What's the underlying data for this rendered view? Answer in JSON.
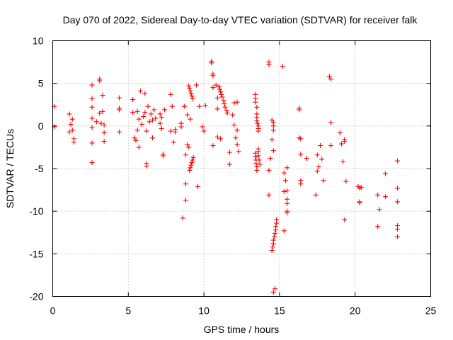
{
  "chart_data": {
    "type": "scatter",
    "title": "Day 070 of 2022, Sidereal Day-to-day VTEC variation (SDTVAR) for receiver falk",
    "xlabel": "GPS time / hours",
    "ylabel": "SDTVAR / TECUs",
    "xlim": [
      0,
      25
    ],
    "ylim": [
      -20,
      10
    ],
    "xticks": [
      0,
      5,
      10,
      15,
      20,
      25
    ],
    "yticks": [
      -20,
      -15,
      -10,
      -5,
      0,
      5,
      10
    ],
    "grid": true,
    "marker": "+",
    "color": "#ff0000",
    "series": [
      {
        "name": "SDTVAR",
        "points": [
          [
            0.1,
            2.3
          ],
          [
            0.1,
            -0.1
          ],
          [
            1.1,
            1.4
          ],
          [
            1.2,
            0.2
          ],
          [
            1.1,
            -0.7
          ],
          [
            1.3,
            -0.5
          ],
          [
            1.3,
            0.8
          ],
          [
            1.4,
            -1.5
          ],
          [
            1.4,
            -1.9
          ],
          [
            2.6,
            4.8
          ],
          [
            2.6,
            3.2
          ],
          [
            2.6,
            2.2
          ],
          [
            2.6,
            0.9
          ],
          [
            2.6,
            -0.2
          ],
          [
            2.6,
            -2.0
          ],
          [
            2.6,
            -4.3
          ],
          [
            2.9,
            0.5
          ],
          [
            3.1,
            5.3
          ],
          [
            3.1,
            5.5
          ],
          [
            3.1,
            1.5
          ],
          [
            3.2,
            0.3
          ],
          [
            3.3,
            1.7
          ],
          [
            3.3,
            3.6
          ],
          [
            3.4,
            -0.8
          ],
          [
            3.4,
            -1.8
          ],
          [
            3.4,
            0.1
          ],
          [
            4.4,
            3.3
          ],
          [
            4.4,
            2.1
          ],
          [
            4.4,
            1.9
          ],
          [
            4.4,
            -0.7
          ],
          [
            5.3,
            3.1
          ],
          [
            5.3,
            1.6
          ],
          [
            5.4,
            -1.4
          ],
          [
            5.5,
            -1.7
          ],
          [
            5.6,
            1.7
          ],
          [
            5.7,
            0.8
          ],
          [
            5.6,
            -0.5
          ],
          [
            5.7,
            -2.5
          ],
          [
            5.8,
            4.1
          ],
          [
            5.9,
            0.2
          ],
          [
            6.0,
            1.1
          ],
          [
            6.1,
            3.8
          ],
          [
            6.1,
            1.6
          ],
          [
            6.2,
            -0.6
          ],
          [
            6.2,
            -4.4
          ],
          [
            6.2,
            -4.7
          ],
          [
            6.3,
            2.3
          ],
          [
            6.4,
            0.5
          ],
          [
            6.5,
            1.4
          ],
          [
            6.6,
            0.7
          ],
          [
            6.6,
            -1.4
          ],
          [
            6.7,
            1.9
          ],
          [
            6.8,
            0.9
          ],
          [
            7.1,
            1.4
          ],
          [
            7.1,
            0.3
          ],
          [
            7.2,
            -0.3
          ],
          [
            7.2,
            1.0
          ],
          [
            7.3,
            -3.3
          ],
          [
            7.3,
            -3.5
          ],
          [
            7.4,
            1.9
          ],
          [
            7.8,
            3.7
          ],
          [
            7.8,
            -0.6
          ],
          [
            7.9,
            2.3
          ],
          [
            8.0,
            -1.9
          ],
          [
            8.1,
            -0.4
          ],
          [
            8.1,
            -0.7
          ],
          [
            8.5,
            0.3
          ],
          [
            8.5,
            -0.1
          ],
          [
            8.6,
            -10.8
          ],
          [
            8.7,
            2.3
          ],
          [
            8.8,
            -8.7
          ],
          [
            8.8,
            -6.8
          ],
          [
            8.8,
            -3.4
          ],
          [
            8.9,
            1.3
          ],
          [
            8.9,
            -2.2
          ],
          [
            9.0,
            -2.5
          ],
          [
            9.1,
            0.8
          ],
          [
            9.0,
            4.7
          ],
          [
            9.05,
            4.4
          ],
          [
            9.1,
            4.1
          ],
          [
            9.15,
            3.8
          ],
          [
            9.2,
            3.5
          ],
          [
            9.25,
            3.2
          ],
          [
            9.05,
            -5.2
          ],
          [
            9.1,
            -4.9
          ],
          [
            9.15,
            -4.6
          ],
          [
            9.2,
            -4.3
          ],
          [
            9.25,
            -4.0
          ],
          [
            9.3,
            -3.7
          ],
          [
            9.5,
            4.8
          ],
          [
            9.6,
            -7.1
          ],
          [
            9.7,
            2.3
          ],
          [
            9.9,
            -0.1
          ],
          [
            10.0,
            -0.6
          ],
          [
            10.1,
            2.4
          ],
          [
            10.5,
            7.6
          ],
          [
            10.5,
            7.4
          ],
          [
            10.6,
            6.1
          ],
          [
            10.6,
            5.9
          ],
          [
            10.6,
            4.5
          ],
          [
            10.6,
            -2.3
          ],
          [
            10.8,
            4.8
          ],
          [
            10.9,
            3.3
          ],
          [
            10.9,
            2.0
          ],
          [
            10.9,
            -1.3
          ],
          [
            11.0,
            4.6
          ],
          [
            11.05,
            4.3
          ],
          [
            11.1,
            4.0
          ],
          [
            11.15,
            3.7
          ],
          [
            11.2,
            3.4
          ],
          [
            11.3,
            3.0
          ],
          [
            11.35,
            2.6
          ],
          [
            11.4,
            2.2
          ],
          [
            11.5,
            1.8
          ],
          [
            11.55,
            1.5
          ],
          [
            11.1,
            -1.5
          ],
          [
            11.7,
            -3.1
          ],
          [
            11.7,
            -4.5
          ],
          [
            11.9,
            1.3
          ],
          [
            12.0,
            2.7
          ],
          [
            12.0,
            0.1
          ],
          [
            12.1,
            -1.4
          ],
          [
            12.2,
            -0.5
          ],
          [
            12.2,
            -2.2
          ],
          [
            12.3,
            -3.0
          ],
          [
            12.2,
            2.8
          ],
          [
            13.4,
            3.7
          ],
          [
            13.4,
            3.2
          ],
          [
            13.4,
            2.8
          ],
          [
            13.5,
            2.2
          ],
          [
            13.5,
            1.4
          ],
          [
            13.5,
            1.0
          ],
          [
            13.5,
            0.6
          ],
          [
            13.55,
            0.3
          ],
          [
            13.6,
            0.0
          ],
          [
            13.6,
            -0.3
          ],
          [
            13.6,
            -0.6
          ],
          [
            13.4,
            -3.2
          ],
          [
            13.4,
            -3.6
          ],
          [
            13.45,
            -4.0
          ],
          [
            13.45,
            -4.4
          ],
          [
            13.5,
            -4.8
          ],
          [
            13.5,
            -5.2
          ],
          [
            13.6,
            -2.7
          ],
          [
            13.6,
            -3.0
          ],
          [
            13.6,
            -3.5
          ],
          [
            13.65,
            -4.0
          ],
          [
            13.7,
            -4.5
          ],
          [
            14.3,
            7.5
          ],
          [
            14.3,
            7.2
          ],
          [
            14.3,
            -5.2
          ],
          [
            14.3,
            -8.1
          ],
          [
            14.4,
            -3.8
          ],
          [
            14.5,
            0.7
          ],
          [
            14.6,
            0.4
          ],
          [
            14.6,
            0.0
          ],
          [
            14.6,
            -0.5
          ],
          [
            14.5,
            -1.6
          ],
          [
            14.6,
            -2.9
          ],
          [
            14.5,
            -14.6
          ],
          [
            14.55,
            -14.2
          ],
          [
            14.6,
            -13.8
          ],
          [
            14.6,
            -13.4
          ],
          [
            14.65,
            -13.0
          ],
          [
            14.7,
            -12.6
          ],
          [
            14.75,
            -12.2
          ],
          [
            14.75,
            -11.8
          ],
          [
            14.8,
            -11.4
          ],
          [
            14.8,
            -11.0
          ],
          [
            14.6,
            -19.5
          ],
          [
            14.7,
            -19.1
          ],
          [
            15.2,
            7.0
          ],
          [
            15.3,
            -5.5
          ],
          [
            15.3,
            -7.7
          ],
          [
            15.3,
            -12.3
          ],
          [
            15.4,
            -6.4
          ],
          [
            15.5,
            -7.6
          ],
          [
            15.5,
            -4.9
          ],
          [
            15.5,
            -8.6
          ],
          [
            15.5,
            -9.1
          ],
          [
            15.5,
            -10.0
          ],
          [
            15.5,
            -10.2
          ],
          [
            16.3,
            2.1
          ],
          [
            16.3,
            1.9
          ],
          [
            16.3,
            -1.4
          ],
          [
            16.4,
            -1.5
          ],
          [
            16.4,
            -3.3
          ],
          [
            16.4,
            -6.4
          ],
          [
            16.4,
            -6.8
          ],
          [
            16.8,
            -3.8
          ],
          [
            17.4,
            -8.1
          ],
          [
            17.5,
            -3.4
          ],
          [
            17.5,
            -5.3
          ],
          [
            17.6,
            -4.8
          ],
          [
            17.7,
            -2.3
          ],
          [
            17.8,
            -3.9
          ],
          [
            17.9,
            -6.4
          ],
          [
            18.3,
            5.8
          ],
          [
            18.4,
            5.5
          ],
          [
            18.4,
            0.4
          ],
          [
            18.4,
            -2.3
          ],
          [
            19.0,
            -0.8
          ],
          [
            19.1,
            -2.1
          ],
          [
            19.2,
            -4.2
          ],
          [
            19.3,
            -1.8
          ],
          [
            19.3,
            -1.6
          ],
          [
            19.3,
            -11.0
          ],
          [
            19.4,
            -6.5
          ],
          [
            20.2,
            -7.1
          ],
          [
            20.3,
            -7.3
          ],
          [
            20.3,
            -8.9
          ],
          [
            20.4,
            -7.2
          ],
          [
            20.3,
            -9.0
          ],
          [
            21.5,
            -8.1
          ],
          [
            21.6,
            -9.8
          ],
          [
            21.5,
            -11.8
          ],
          [
            22.0,
            -5.6
          ],
          [
            22.0,
            -8.3
          ],
          [
            22.8,
            -4.1
          ],
          [
            22.8,
            -7.3
          ],
          [
            22.8,
            -8.9
          ],
          [
            22.8,
            -11.7
          ],
          [
            22.8,
            -12.1
          ],
          [
            22.8,
            -13.0
          ]
        ]
      }
    ]
  }
}
